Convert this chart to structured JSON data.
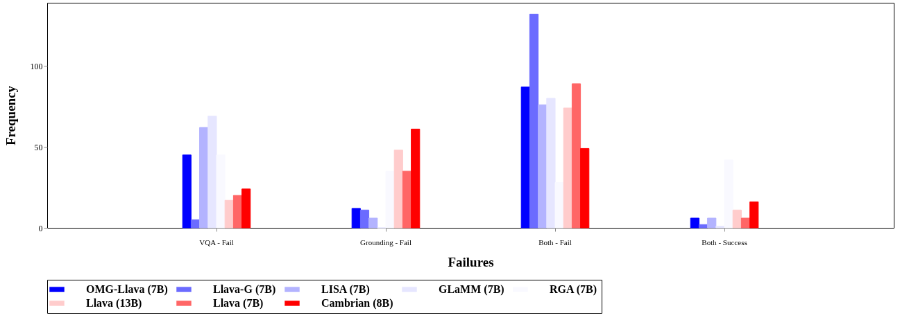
{
  "chart_data": {
    "type": "bar",
    "xlabel": "Failures",
    "ylabel": "Frequency",
    "categories": [
      "VQA - Fail",
      "Grounding - Fail",
      "Both - Fail",
      "Both - Success"
    ],
    "ylim": [
      0,
      139
    ],
    "yticks": [
      0,
      50,
      100
    ],
    "grid": false,
    "legend": "bottom",
    "series": [
      {
        "name": "OMG-Llava (7B)",
        "color": "#0000ff",
        "values": [
          45,
          12,
          87,
          6
        ]
      },
      {
        "name": "Llava-G (7B)",
        "color": "#6b6bff",
        "values": [
          5,
          11,
          132,
          2
        ]
      },
      {
        "name": "LISA (7B)",
        "color": "#b3b3ff",
        "values": [
          62,
          6,
          76,
          6
        ]
      },
      {
        "name": "GLaMM (7B)",
        "color": "#e6e6ff",
        "values": [
          69,
          0,
          80,
          1
        ]
      },
      {
        "name": "RGA (7B)",
        "color": "#f9f9ff",
        "values": [
          45,
          35,
          28,
          42
        ]
      },
      {
        "name": "Llava (13B)",
        "color": "#ffcccc",
        "values": [
          17,
          48,
          74,
          11
        ]
      },
      {
        "name": "Llava (7B)",
        "color": "#ff6666",
        "values": [
          20,
          35,
          89,
          6
        ]
      },
      {
        "name": "Cambrian (8B)",
        "color": "#ff0000",
        "values": [
          24,
          61,
          49,
          16
        ]
      }
    ]
  }
}
